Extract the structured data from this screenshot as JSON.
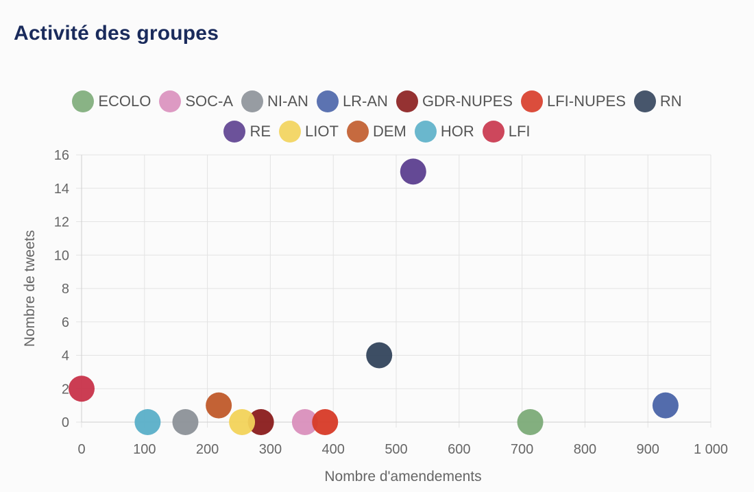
{
  "title": "Activité des groupes",
  "chart_data": {
    "type": "scatter",
    "xlabel": "Nombre d'amendements",
    "ylabel": "Nombre de tweets",
    "xlim": [
      0,
      1000
    ],
    "ylim": [
      0,
      16
    ],
    "x_ticks": [
      "0",
      "100",
      "200",
      "300",
      "400",
      "500",
      "600",
      "700",
      "800",
      "900",
      "1 000"
    ],
    "y_ticks": [
      "0",
      "2",
      "4",
      "6",
      "8",
      "10",
      "12",
      "14",
      "16"
    ],
    "grid": true,
    "legend_placement": "top",
    "series": [
      {
        "name": "ECOLO",
        "color": "#7cab78",
        "x": 713,
        "y": 0
      },
      {
        "name": "SOC-A",
        "color": "#d98fbc",
        "x": 355,
        "y": 0
      },
      {
        "name": "NI-AN",
        "color": "#8c9198",
        "x": 165,
        "y": 0
      },
      {
        "name": "LR-AN",
        "color": "#4a64a8",
        "x": 928,
        "y": 1
      },
      {
        "name": "GDR-NUPES",
        "color": "#8a1c1c",
        "x": 285,
        "y": 0
      },
      {
        "name": "LFI-NUPES",
        "color": "#d73a27",
        "x": 387,
        "y": 0
      },
      {
        "name": "RN",
        "color": "#33445c",
        "x": 473,
        "y": 4
      },
      {
        "name": "RE",
        "color": "#5c3f8f",
        "x": 527,
        "y": 15
      },
      {
        "name": "LIOT",
        "color": "#f2d35a",
        "x": 255,
        "y": 0
      },
      {
        "name": "DEM",
        "color": "#c05a2a",
        "x": 218,
        "y": 1
      },
      {
        "name": "HOR",
        "color": "#5aafc8",
        "x": 105,
        "y": 0
      },
      {
        "name": "LFI",
        "color": "#c8334a",
        "x": 0,
        "y": 2
      }
    ]
  }
}
